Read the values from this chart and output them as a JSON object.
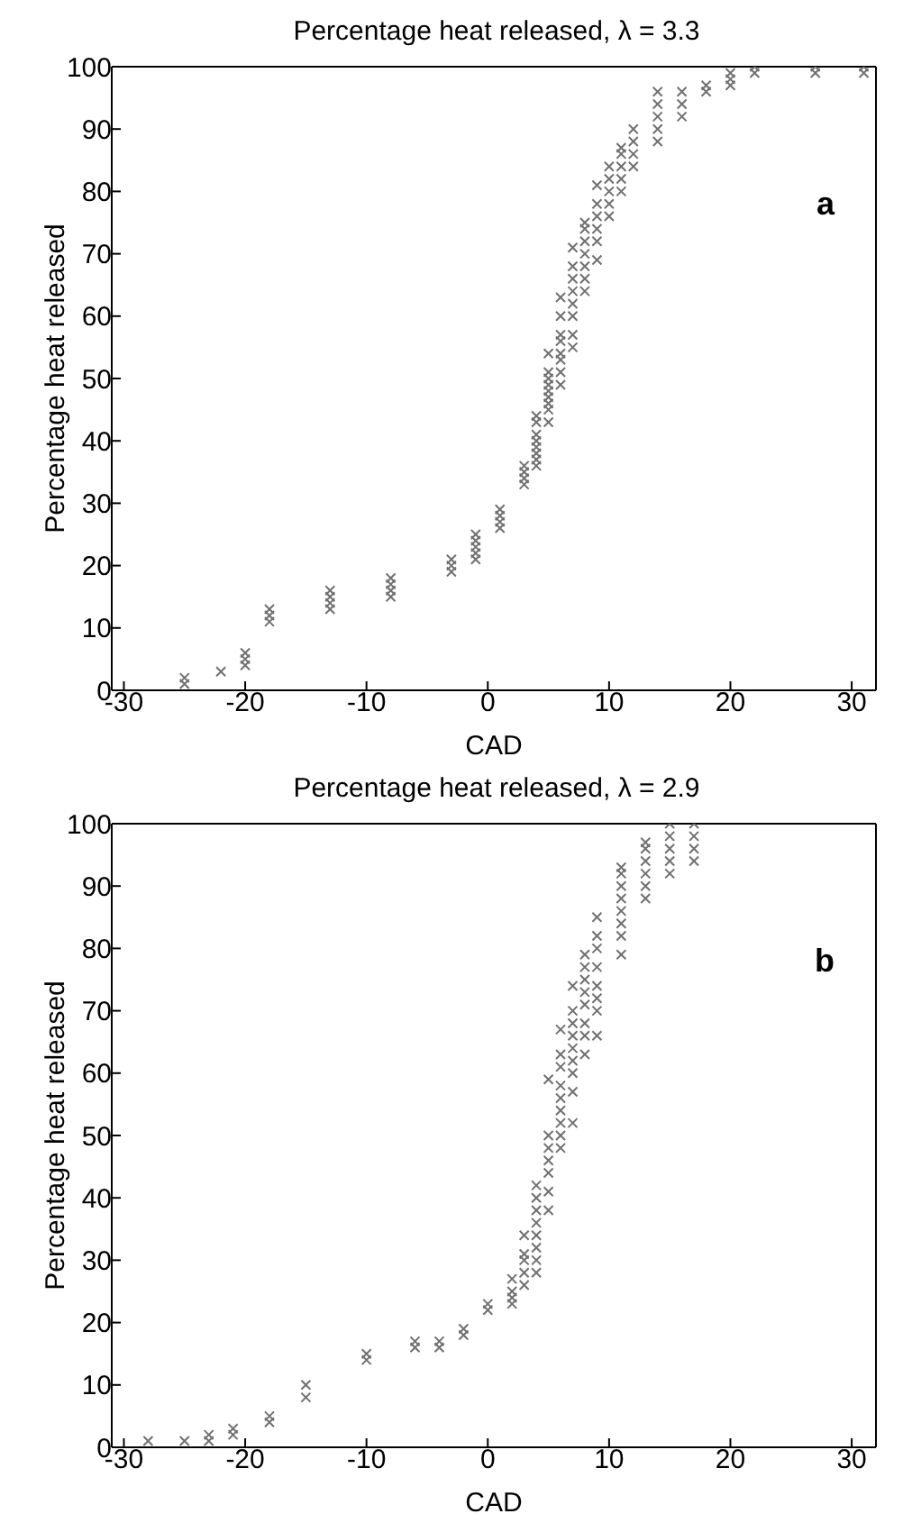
{
  "chart_data": [
    {
      "type": "scatter",
      "title": "Percentage heat released, λ = 3.3",
      "xlabel": "CAD",
      "ylabel": "Percentage heat released",
      "annotations": [
        "a"
      ],
      "marker": "cross",
      "legend": false,
      "xlim": [
        -31,
        32
      ],
      "ylim": [
        0,
        100
      ],
      "xticks": [
        -30,
        -20,
        -10,
        0,
        10,
        20,
        30
      ],
      "yticks": [
        0,
        10,
        20,
        30,
        40,
        50,
        60,
        70,
        80,
        90,
        100
      ],
      "series": [
        {
          "color": "#707070",
          "x": [
            -25,
            -25,
            -22,
            -20,
            -20,
            -20,
            -18,
            -18,
            -18,
            -13,
            -13,
            -13,
            -13,
            -8,
            -8,
            -8,
            -8,
            -3,
            -3,
            -3,
            -1,
            -1,
            -1,
            -1,
            -1,
            1,
            1,
            1,
            1,
            3,
            3,
            3,
            3,
            4,
            4,
            4,
            4,
            4,
            4,
            4,
            4,
            5,
            5,
            5,
            5,
            5,
            5,
            5,
            5,
            5,
            6,
            6,
            6,
            6,
            6,
            6,
            6,
            6,
            7,
            7,
            7,
            7,
            7,
            7,
            7,
            7,
            8,
            8,
            8,
            8,
            8,
            8,
            8,
            9,
            9,
            9,
            9,
            9,
            9,
            10,
            10,
            10,
            10,
            10,
            11,
            11,
            11,
            11,
            11,
            12,
            12,
            12,
            12,
            14,
            14,
            14,
            14,
            14,
            16,
            16,
            16,
            18,
            18,
            20,
            20,
            20,
            22,
            22,
            27,
            27,
            31,
            31
          ],
          "values": [
            1,
            2,
            3,
            4,
            5,
            6,
            11,
            12,
            13,
            13,
            14,
            15,
            16,
            15,
            16,
            17,
            18,
            19,
            20,
            21,
            21,
            22,
            23,
            24,
            25,
            26,
            27,
            28,
            29,
            33,
            34,
            35,
            36,
            36,
            37,
            38,
            39,
            40,
            41,
            43,
            44,
            43,
            45,
            46,
            47,
            48,
            49,
            50,
            51,
            54,
            49,
            51,
            53,
            54,
            56,
            57,
            60,
            63,
            55,
            57,
            60,
            62,
            64,
            66,
            68,
            71,
            64,
            66,
            68,
            70,
            72,
            74,
            75,
            69,
            72,
            74,
            76,
            78,
            81,
            76,
            78,
            80,
            82,
            84,
            80,
            82,
            84,
            86,
            87,
            84,
            86,
            88,
            90,
            88,
            90,
            92,
            94,
            96,
            92,
            94,
            96,
            96,
            97,
            97,
            98,
            99,
            99,
            100,
            99,
            100,
            99,
            100
          ]
        }
      ]
    },
    {
      "type": "scatter",
      "title": "Percentage heat released, λ = 2.9",
      "xlabel": "CAD",
      "ylabel": "Percentage heat released",
      "annotations": [
        "b"
      ],
      "marker": "cross",
      "legend": false,
      "xlim": [
        -31,
        32
      ],
      "ylim": [
        0,
        100
      ],
      "xticks": [
        -30,
        -20,
        -10,
        0,
        10,
        20,
        30
      ],
      "yticks": [
        0,
        10,
        20,
        30,
        40,
        50,
        60,
        70,
        80,
        90,
        100
      ],
      "series": [
        {
          "color": "#707070",
          "x": [
            -28,
            -25,
            -23,
            -23,
            -21,
            -21,
            -18,
            -18,
            -15,
            -15,
            -10,
            -10,
            -6,
            -6,
            -4,
            -4,
            -2,
            -2,
            0,
            0,
            2,
            2,
            2,
            2,
            3,
            3,
            3,
            3,
            3,
            4,
            4,
            4,
            4,
            4,
            4,
            4,
            4,
            5,
            5,
            5,
            5,
            5,
            5,
            5,
            6,
            6,
            6,
            6,
            6,
            6,
            6,
            6,
            6,
            7,
            7,
            7,
            7,
            7,
            7,
            7,
            7,
            7,
            8,
            8,
            8,
            8,
            8,
            8,
            8,
            8,
            9,
            9,
            9,
            9,
            9,
            9,
            9,
            9,
            11,
            11,
            11,
            11,
            11,
            11,
            11,
            11,
            13,
            13,
            13,
            13,
            13,
            13,
            15,
            15,
            15,
            15,
            15,
            17,
            17,
            17,
            17
          ],
          "values": [
            1,
            1,
            1,
            2,
            2,
            3,
            4,
            5,
            8,
            10,
            14,
            15,
            16,
            17,
            16,
            17,
            18,
            19,
            22,
            23,
            23,
            24,
            25,
            27,
            26,
            28,
            30,
            31,
            34,
            28,
            30,
            32,
            34,
            36,
            38,
            40,
            42,
            38,
            41,
            44,
            46,
            48,
            50,
            59,
            48,
            50,
            52,
            54,
            56,
            58,
            61,
            63,
            67,
            52,
            57,
            60,
            62,
            64,
            66,
            68,
            70,
            74,
            63,
            66,
            68,
            71,
            73,
            75,
            77,
            79,
            66,
            70,
            72,
            74,
            77,
            80,
            82,
            85,
            79,
            82,
            84,
            86,
            88,
            90,
            92,
            93,
            88,
            90,
            92,
            94,
            96,
            97,
            92,
            94,
            96,
            98,
            100,
            94,
            96,
            98,
            100
          ]
        }
      ]
    }
  ]
}
